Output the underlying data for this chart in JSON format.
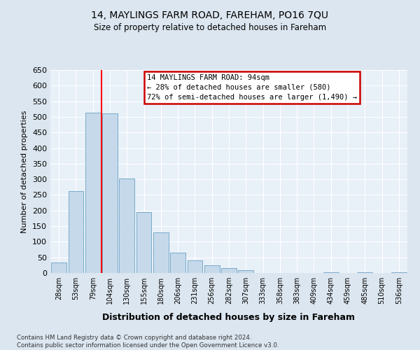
{
  "title": "14, MAYLINGS FARM ROAD, FAREHAM, PO16 7QU",
  "subtitle": "Size of property relative to detached houses in Fareham",
  "xlabel": "Distribution of detached houses by size in Fareham",
  "ylabel": "Number of detached properties",
  "categories": [
    "28sqm",
    "53sqm",
    "79sqm",
    "104sqm",
    "130sqm",
    "155sqm",
    "180sqm",
    "206sqm",
    "231sqm",
    "256sqm",
    "282sqm",
    "307sqm",
    "333sqm",
    "358sqm",
    "383sqm",
    "409sqm",
    "434sqm",
    "459sqm",
    "485sqm",
    "510sqm",
    "536sqm"
  ],
  "values": [
    33,
    263,
    513,
    510,
    302,
    195,
    130,
    65,
    40,
    25,
    15,
    10,
    0,
    0,
    0,
    0,
    2,
    0,
    2,
    0,
    2
  ],
  "bar_color": "#c5d9ea",
  "bar_edge_color": "#7aaac8",
  "annotation_title": "14 MAYLINGS FARM ROAD: 94sqm",
  "annotation_line1": "← 28% of detached houses are smaller (580)",
  "annotation_line2": "72% of semi-detached houses are larger (1,490) →",
  "annotation_box_color": "#ffffff",
  "annotation_box_edge_color": "#cc0000",
  "ylim": [
    0,
    650
  ],
  "yticks": [
    0,
    50,
    100,
    150,
    200,
    250,
    300,
    350,
    400,
    450,
    500,
    550,
    600,
    650
  ],
  "footer_line1": "Contains HM Land Registry data © Crown copyright and database right 2024.",
  "footer_line2": "Contains public sector information licensed under the Open Government Licence v3.0.",
  "bg_color": "#dce6f0",
  "plot_bg_color": "#e8f0f8",
  "red_line_x": 2.5
}
